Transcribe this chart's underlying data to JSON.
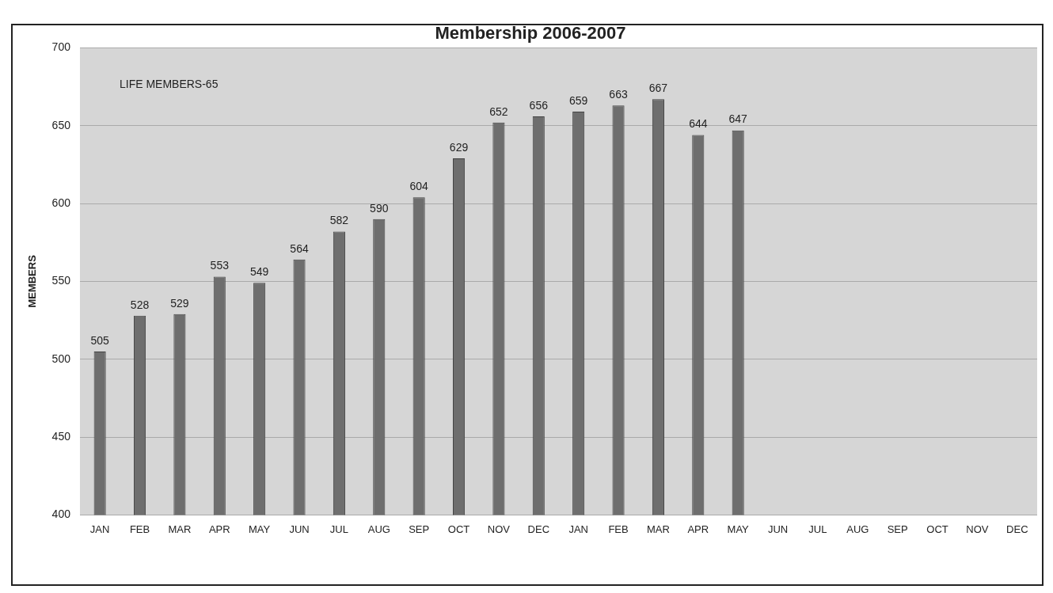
{
  "chart_data": {
    "type": "bar",
    "title": "Membership 2006-2007",
    "ylabel": "MEMBERS",
    "categories": [
      "JAN",
      "FEB",
      "MAR",
      "APR",
      "MAY",
      "JUN",
      "JUL",
      "AUG",
      "SEP",
      "OCT",
      "NOV",
      "DEC",
      "JAN",
      "FEB",
      "MAR",
      "APR",
      "MAY",
      "JUN",
      "JUL",
      "AUG",
      "SEP",
      "OCT",
      "NOV",
      "DEC"
    ],
    "values": [
      505,
      528,
      529,
      553,
      549,
      564,
      582,
      590,
      604,
      629,
      652,
      656,
      659,
      663,
      667,
      644,
      647,
      null,
      null,
      null,
      null,
      null,
      null,
      null
    ],
    "color": "#6e6e6e",
    "ylim": [
      400,
      700
    ],
    "yticks": [
      400,
      450,
      500,
      550,
      600,
      650,
      700
    ],
    "grid": "y",
    "legend": false,
    "data_labels": true,
    "annotations": [
      "LIFE MEMBERS-65"
    ]
  }
}
